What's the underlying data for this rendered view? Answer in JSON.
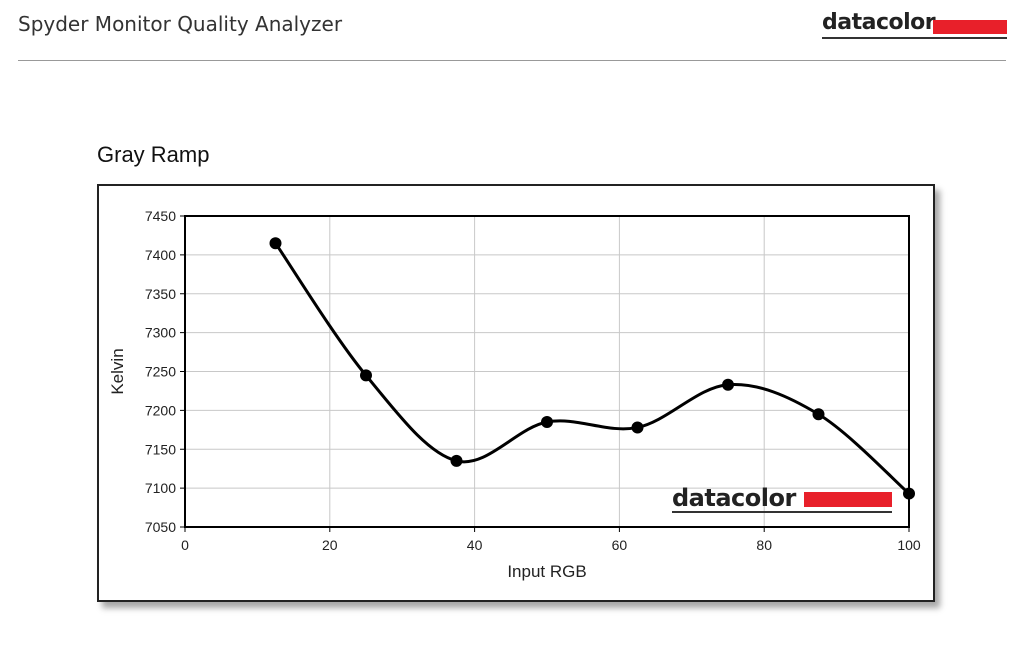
{
  "header": {
    "app_title": "Spyder Monitor Quality Analyzer",
    "brand": "datacolor"
  },
  "section": {
    "title": "Gray Ramp"
  },
  "colors": {
    "brand_red": "#e8202a",
    "line": "#000000",
    "grid": "#c8c8c8"
  },
  "chart_data": {
    "type": "line",
    "title": "",
    "xlabel": "Input RGB",
    "ylabel": "Kelvin",
    "xlim": [
      0,
      100
    ],
    "ylim": [
      7050,
      7450
    ],
    "xticks": [
      0,
      20,
      40,
      60,
      80,
      100
    ],
    "yticks": [
      7050,
      7100,
      7150,
      7200,
      7250,
      7300,
      7350,
      7400,
      7450
    ],
    "grid": true,
    "smooth": true,
    "watermark": "datacolor",
    "series": [
      {
        "x": [
          12.5,
          25,
          37.5,
          50,
          62.5,
          75,
          87.5,
          100
        ],
        "y": [
          7415,
          7245,
          7135,
          7185,
          7178,
          7233,
          7195,
          7093
        ]
      }
    ]
  }
}
